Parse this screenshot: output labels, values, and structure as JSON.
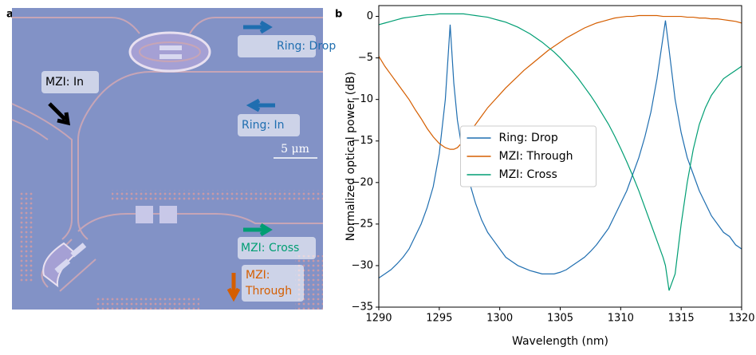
{
  "figure": {
    "panel_labels": [
      "a",
      "b"
    ],
    "micrograph": {
      "ring_drop": "Ring: Drop",
      "mzi_in": "MZI: In",
      "ring_in": "Ring: In",
      "scale_bar": "5 μm",
      "mzi_cross": "MZI: Cross",
      "mzi_through": [
        "MZI:",
        "Through"
      ]
    }
  },
  "chart_data": {
    "type": "line",
    "xlabel": "Wavelength (nm)",
    "ylabel": "Normalized optical power (dB)",
    "x": [
      1290,
      1290.5,
      1291,
      1291.5,
      1292,
      1292.5,
      1293,
      1293.5,
      1294,
      1294.5,
      1295,
      1295.5,
      1295.9,
      1296.2,
      1296.5,
      1297,
      1297.5,
      1298,
      1298.5,
      1299,
      1299.5,
      1300,
      1300.5,
      1301,
      1301.5,
      1302,
      1302.5,
      1303,
      1303.5,
      1304,
      1304.5,
      1305,
      1305.5,
      1306,
      1306.5,
      1307,
      1307.5,
      1308,
      1308.5,
      1309,
      1309.5,
      1310,
      1310.5,
      1311,
      1311.5,
      1312,
      1312.5,
      1313,
      1313.5,
      1313.7,
      1314,
      1314.5,
      1315,
      1315.5,
      1316,
      1316.5,
      1317,
      1317.5,
      1318,
      1318.5,
      1319,
      1319.5,
      1320
    ],
    "series": [
      {
        "name": "Ring: Drop",
        "color": "#1f6eb0",
        "values": [
          -31.5,
          -31,
          -30.5,
          -29.8,
          -29,
          -28,
          -26.5,
          -25,
          -23,
          -20.5,
          -16.5,
          -10,
          -1,
          -8,
          -12.5,
          -17,
          -20,
          -22.5,
          -24.5,
          -26,
          -27,
          -28,
          -29,
          -29.5,
          -30,
          -30.3,
          -30.6,
          -30.8,
          -31,
          -31,
          -31,
          -30.8,
          -30.5,
          -30,
          -29.5,
          -29,
          -28.3,
          -27.5,
          -26.5,
          -25.5,
          -24,
          -22.5,
          -21,
          -19,
          -17,
          -14.5,
          -11.5,
          -7.5,
          -2.5,
          -0.5,
          -4,
          -10,
          -14,
          -17,
          -19,
          -21,
          -22.5,
          -24,
          -25,
          -26,
          -26.5,
          -27.5,
          -28
        ]
      },
      {
        "name": "MZI: Through",
        "color": "#d55e00",
        "values": [
          -4.8,
          -6,
          -7,
          -8,
          -9,
          -10,
          -11.2,
          -12.3,
          -13.5,
          -14.5,
          -15.3,
          -15.8,
          -16,
          -16,
          -15.8,
          -15,
          -14,
          -13,
          -12,
          -11,
          -10.2,
          -9.4,
          -8.6,
          -7.9,
          -7.2,
          -6.5,
          -5.9,
          -5.3,
          -4.7,
          -4.1,
          -3.6,
          -3.1,
          -2.6,
          -2.2,
          -1.8,
          -1.4,
          -1.1,
          -0.8,
          -0.6,
          -0.4,
          -0.2,
          -0.1,
          0,
          0,
          0.1,
          0.1,
          0.1,
          0.1,
          0,
          0,
          0,
          0,
          0,
          -0.1,
          -0.1,
          -0.2,
          -0.2,
          -0.3,
          -0.3,
          -0.4,
          -0.5,
          -0.6,
          -0.8
        ]
      },
      {
        "name": "MZI: Cross",
        "color": "#009e73",
        "values": [
          -1,
          -0.8,
          -0.6,
          -0.4,
          -0.2,
          -0.1,
          0,
          0.1,
          0.2,
          0.2,
          0.3,
          0.3,
          0.3,
          0.3,
          0.3,
          0.3,
          0.2,
          0.1,
          0,
          -0.1,
          -0.3,
          -0.5,
          -0.7,
          -1,
          -1.3,
          -1.7,
          -2.1,
          -2.6,
          -3.1,
          -3.7,
          -4.3,
          -5,
          -5.8,
          -6.6,
          -7.5,
          -8.5,
          -9.5,
          -10.6,
          -11.8,
          -13,
          -14.4,
          -15.9,
          -17.5,
          -19.2,
          -21,
          -23,
          -25,
          -27,
          -29,
          -30,
          -33,
          -31,
          -25,
          -20,
          -16,
          -13,
          -11,
          -9.5,
          -8.5,
          -7.5,
          -7,
          -6.5,
          -6
        ]
      }
    ],
    "xlim": [
      1290,
      1320
    ],
    "xticks": [
      1290,
      1295,
      1300,
      1305,
      1310,
      1315,
      1320
    ],
    "ylim": [
      -35,
      1.3
    ],
    "yticks": [
      {
        "value": -35,
        "label": "−35"
      },
      {
        "value": -30,
        "label": "−30"
      },
      {
        "value": -25,
        "label": "−25"
      },
      {
        "value": -20,
        "label": "−20"
      },
      {
        "value": -15,
        "label": "−15"
      },
      {
        "value": -10,
        "label": "−10"
      },
      {
        "value": -5,
        "label": "−5"
      },
      0
    ],
    "legend": "center"
  }
}
